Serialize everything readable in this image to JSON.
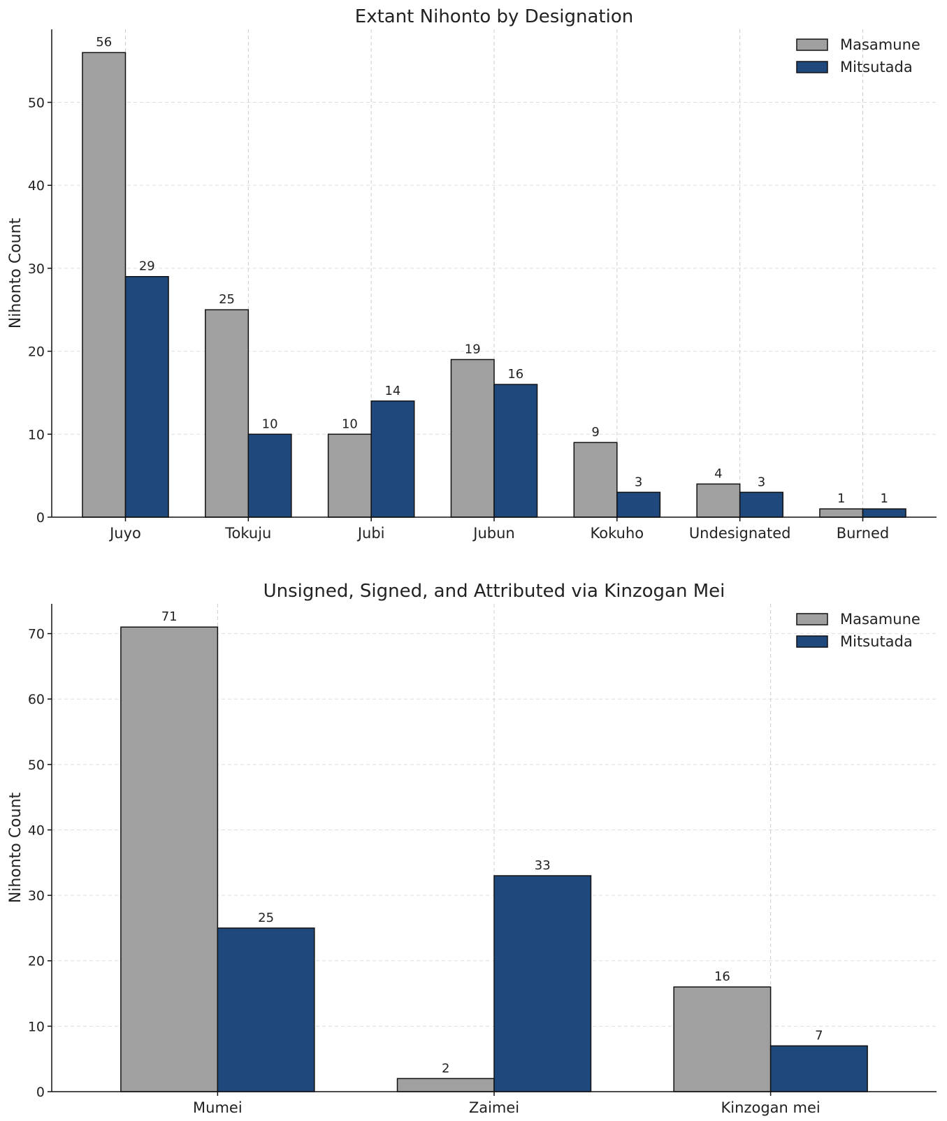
{
  "chart_data": [
    {
      "type": "bar",
      "title": "Extant Nihonto by Designation",
      "xlabel": "",
      "ylabel": "Nihonto Count",
      "categories": [
        "Juyo",
        "Tokuju",
        "Jubi",
        "Jubun",
        "Kokuho",
        "Undesignated",
        "Burned"
      ],
      "series": [
        {
          "name": "Masamune",
          "color": "#a0a0a0",
          "values": [
            56,
            25,
            10,
            19,
            9,
            4,
            1
          ]
        },
        {
          "name": "Mitsutada",
          "color": "#1f497d",
          "values": [
            29,
            10,
            14,
            16,
            3,
            3,
            1
          ]
        }
      ],
      "ylim": [
        0,
        58.8
      ],
      "yticks": [
        0,
        10,
        20,
        30,
        40,
        50
      ],
      "grid": true,
      "legend": "top-right"
    },
    {
      "type": "bar",
      "title": "Unsigned, Signed, and Attributed via Kinzogan Mei",
      "xlabel": "",
      "ylabel": "Nihonto Count",
      "categories": [
        "Mumei",
        "Zaimei",
        "Kinzogan mei"
      ],
      "series": [
        {
          "name": "Masamune",
          "color": "#a0a0a0",
          "values": [
            71,
            2,
            16
          ]
        },
        {
          "name": "Mitsutada",
          "color": "#1f497d",
          "values": [
            25,
            33,
            7
          ]
        }
      ],
      "ylim": [
        0,
        74.55
      ],
      "yticks": [
        0,
        10,
        20,
        30,
        40,
        50,
        60,
        70
      ],
      "grid": true,
      "legend": "top-right"
    }
  ]
}
